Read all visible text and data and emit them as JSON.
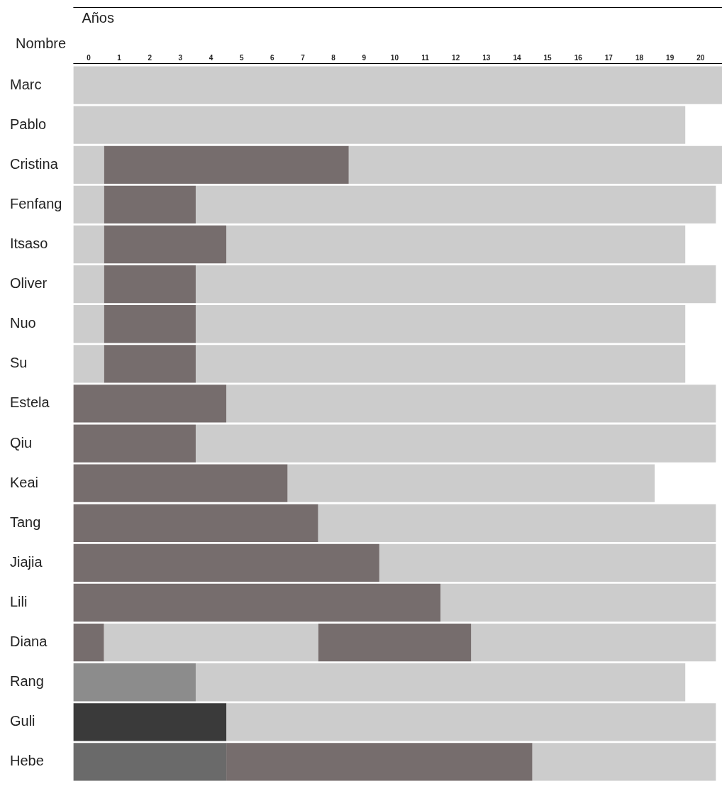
{
  "chart_data": {
    "type": "bar",
    "orientation": "horizontal",
    "stacked": true,
    "xlabel": "Años",
    "ylabel": "Nombre",
    "categories": [
      "Marc",
      "Pablo",
      "Cristina",
      "Fenfang",
      "Itsaso",
      "Oliver",
      "Nuo",
      "Su",
      "Estela",
      "Qiu",
      "Keai",
      "Tang",
      "Jiajia",
      "Lili",
      "Diana",
      "Rang",
      "Guli",
      "Hebe"
    ],
    "xlim": [
      0,
      21.2
    ],
    "xticks": [
      {
        "value": 0.5,
        "label": "0"
      },
      {
        "value": 1.5,
        "label": "1"
      },
      {
        "value": 2.5,
        "label": "2"
      },
      {
        "value": 3.5,
        "label": "3"
      },
      {
        "value": 4.5,
        "label": "4"
      },
      {
        "value": 5.5,
        "label": "5"
      },
      {
        "value": 6.5,
        "label": "6"
      },
      {
        "value": 7.5,
        "label": "7"
      },
      {
        "value": 8.5,
        "label": "8"
      },
      {
        "value": 9.5,
        "label": "9"
      },
      {
        "value": 10.5,
        "label": "10"
      },
      {
        "value": 11.5,
        "label": "11"
      },
      {
        "value": 12.5,
        "label": "12"
      },
      {
        "value": 13.5,
        "label": "13"
      },
      {
        "value": 14.5,
        "label": "14"
      },
      {
        "value": 15.5,
        "label": "15"
      },
      {
        "value": 16.5,
        "label": "16"
      },
      {
        "value": 17.5,
        "label": "17"
      },
      {
        "value": 18.5,
        "label": "18"
      },
      {
        "value": 19.5,
        "label": "19"
      },
      {
        "value": 20.5,
        "label": "20"
      }
    ],
    "grid": false,
    "legend": false,
    "series": [
      {
        "values": [
          21.2,
          20,
          1,
          1,
          1,
          1,
          1,
          1,
          5,
          4,
          7,
          8,
          10,
          12,
          1,
          4,
          5,
          5
        ],
        "colors": [
          "#cccccc",
          "#cccccc",
          "#cccccc",
          "#cccccc",
          "#cccccc",
          "#cccccc",
          "#cccccc",
          "#cccccc",
          "#766d6d",
          "#766d6d",
          "#766d6d",
          "#766d6d",
          "#766d6d",
          "#766d6d",
          "#766d6d",
          "#8c8c8c",
          "#3a3a3a",
          "#6a6a6a"
        ]
      },
      {
        "values": [
          null,
          null,
          8,
          3,
          4,
          3,
          3,
          3,
          16,
          17,
          12,
          13,
          11,
          9,
          7,
          16,
          16,
          10
        ],
        "colors": [
          "#766d6d",
          "#766d6d",
          "#766d6d",
          "#766d6d",
          "#766d6d",
          "#766d6d",
          "#766d6d",
          "#766d6d",
          "#cccccc",
          "#cccccc",
          "#cccccc",
          "#cccccc",
          "#cccccc",
          "#cccccc",
          "#cccccc",
          "#cccccc",
          "#cccccc",
          "#766d6d"
        ]
      },
      {
        "values": [
          null,
          null,
          12.2,
          17,
          15,
          17,
          16,
          16,
          null,
          null,
          null,
          null,
          null,
          null,
          5,
          null,
          null,
          6
        ],
        "colors": [
          "#cccccc",
          "#cccccc",
          "#cccccc",
          "#cccccc",
          "#cccccc",
          "#cccccc",
          "#cccccc",
          "#cccccc",
          "#cccccc",
          "#cccccc",
          "#cccccc",
          "#cccccc",
          "#cccccc",
          "#cccccc",
          "#766d6d",
          "#cccccc",
          "#cccccc",
          "#cccccc"
        ]
      },
      {
        "values": [
          null,
          null,
          null,
          null,
          null,
          null,
          null,
          null,
          null,
          null,
          null,
          null,
          null,
          null,
          8,
          null,
          null,
          null
        ],
        "color": "#cccccc"
      }
    ]
  }
}
